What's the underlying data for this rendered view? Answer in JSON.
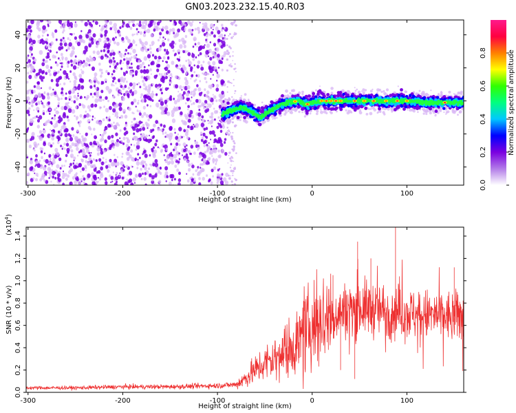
{
  "title": "GN03.2023.232.15.40.R03",
  "colors": {
    "snr_line": "#ee3030",
    "scatter_core": "#7a00e0",
    "scatter_light": "#d9b8f5"
  },
  "chart_data": [
    {
      "type": "heatmap",
      "xlabel": "Height of straight line (km)",
      "ylabel": "Frequency (Hz)",
      "xlim": [
        -302,
        160
      ],
      "ylim": [
        -51,
        49
      ],
      "xticks": [
        -300,
        -200,
        -100,
        0,
        100
      ],
      "yticks": [
        -40,
        -20,
        0,
        20,
        40
      ],
      "noise_region": {
        "x": [
          -302,
          -90
        ],
        "y": [
          -51,
          49
        ]
      },
      "tone_track": {
        "x": [
          -95,
          -85,
          -75,
          -65,
          -55,
          -45,
          -35,
          -25,
          -15,
          -5,
          0,
          10,
          20,
          40,
          60,
          80,
          100,
          120,
          140,
          160
        ],
        "y": [
          -8,
          -6,
          -4,
          -6,
          -10,
          -6,
          -3,
          -1,
          0,
          -2,
          -1,
          0,
          0,
          0,
          0,
          0,
          0,
          -1,
          -1,
          -1
        ]
      },
      "colorbar": {
        "label": "Normalized spectral amplitude",
        "range": [
          0,
          1
        ],
        "ticks": [
          "0.0",
          "0.2",
          "0.4",
          "0.6",
          "0.8"
        ],
        "colormap": [
          "#ffffff",
          "#b27be8",
          "#7a00e0",
          "#0000ff",
          "#00c8ff",
          "#00ff80",
          "#30ff00",
          "#ffff00",
          "#ff8000",
          "#ff0040",
          "#ff1a8c"
        ]
      },
      "grid": false
    },
    {
      "type": "line",
      "xlabel": "Height of straight line (km)",
      "ylabel": "SNR (10 * v/v)",
      "scale_label": "(x10",
      "scale_exp": "4",
      "scale_close": ")",
      "xlim": [
        -302,
        160
      ],
      "ylim": [
        0,
        1.48
      ],
      "xticks": [
        -300,
        -200,
        -100,
        0,
        100
      ],
      "yticks": [
        "0.0",
        "0.2",
        "0.4",
        "0.6",
        "0.8",
        "1.0",
        "1.2",
        "1.4"
      ],
      "series": [
        {
          "x": [
            -302,
            -250,
            -200,
            -150,
            -100,
            -80,
            -70,
            -60,
            -50,
            -40,
            -30,
            -20,
            -10,
            0,
            10,
            20,
            30,
            40,
            50,
            60,
            70,
            80,
            90,
            100,
            110,
            120,
            130,
            140,
            150,
            160
          ],
          "y": [
            0.04,
            0.04,
            0.05,
            0.05,
            0.06,
            0.07,
            0.13,
            0.2,
            0.26,
            0.3,
            0.36,
            0.42,
            0.5,
            0.6,
            0.64,
            0.68,
            0.72,
            0.75,
            0.76,
            0.75,
            0.74,
            0.73,
            0.72,
            0.71,
            0.7,
            0.69,
            0.69,
            0.68,
            0.68,
            0.68
          ]
        }
      ],
      "grid": false
    }
  ]
}
